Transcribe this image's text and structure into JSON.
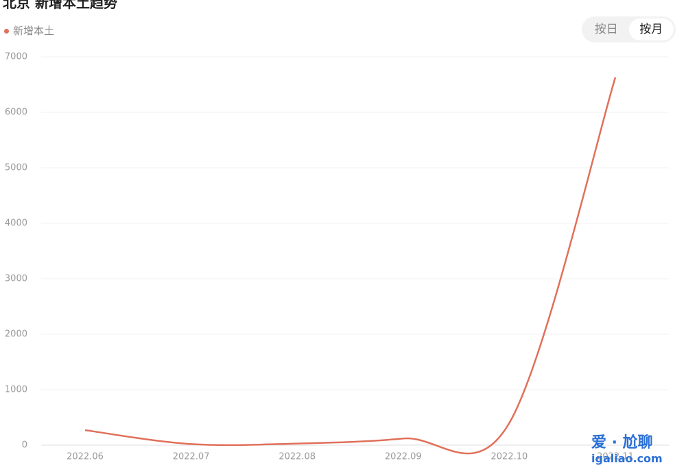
{
  "chart_data": {
    "type": "line",
    "title": "北京 新增本土趋势",
    "categories": [
      "2022.06",
      "2022.07",
      "2022.08",
      "2022.09",
      "2022.10",
      "2022.11"
    ],
    "series": [
      {
        "name": "新增本土",
        "color": "#e0705a",
        "values": [
          270,
          20,
          30,
          120,
          400,
          6630
        ]
      }
    ],
    "ylim": [
      0,
      7000
    ],
    "yticks": [
      0,
      1000,
      2000,
      3000,
      4000,
      5000,
      6000,
      7000
    ],
    "grid": true,
    "smooth": true
  },
  "toggle": {
    "options": [
      "按日",
      "按月"
    ],
    "active": 1
  },
  "watermark": {
    "name": "爱 · 尬聊",
    "url": "igaliao.com"
  }
}
